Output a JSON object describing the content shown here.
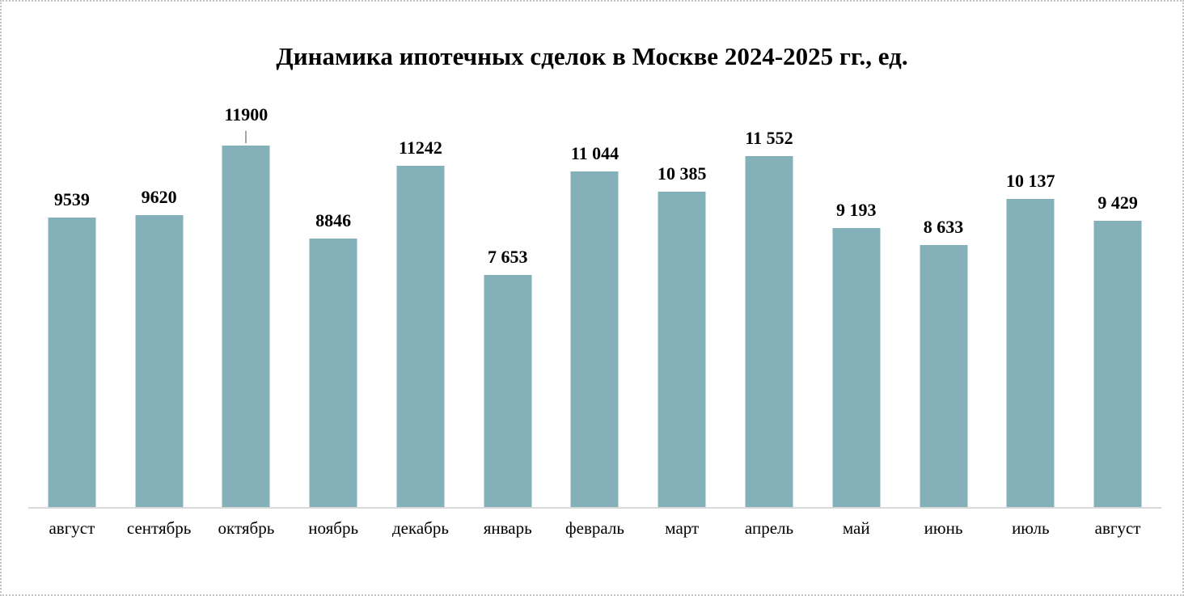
{
  "chart_data": {
    "type": "bar",
    "title": "Динамика ипотечных сделок в Москве 2024-2025 гг., ед.",
    "categories": [
      "август",
      "сентябрь",
      "октябрь",
      "ноябрь",
      "декабрь",
      "январь",
      "февраль",
      "март",
      "апрель",
      "май",
      "июнь",
      "июль",
      "август"
    ],
    "values": [
      9539,
      9620,
      11900,
      8846,
      11242,
      7653,
      11044,
      10385,
      11552,
      9193,
      8633,
      10137,
      9429
    ],
    "value_labels": [
      "9539",
      "9620",
      "11900",
      "8846",
      "11242",
      "7 653",
      "11 044",
      "10 385",
      "11 552",
      "9 193",
      "8 633",
      "10 137",
      "9 429"
    ],
    "xlabel": "",
    "ylabel": "",
    "ylim": [
      0,
      12000
    ],
    "grid": false,
    "legend": false,
    "leader_line_index": 2,
    "bar_color": "#84b1b9",
    "axis_line_color": "#d9d9d9",
    "leader_line_color": "#a6a6a6",
    "label_color": "#000000",
    "title_color": "#000000"
  }
}
